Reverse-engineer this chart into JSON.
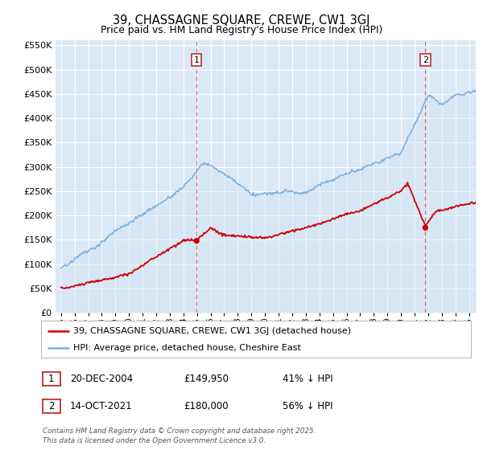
{
  "title": "39, CHASSAGNE SQUARE, CREWE, CW1 3GJ",
  "subtitle": "Price paid vs. HM Land Registry's House Price Index (HPI)",
  "legend_line1": "39, CHASSAGNE SQUARE, CREWE, CW1 3GJ (detached house)",
  "legend_line2": "HPI: Average price, detached house, Cheshire East",
  "footnote": "Contains HM Land Registry data © Crown copyright and database right 2025.\nThis data is licensed under the Open Government Licence v3.0.",
  "table_rows": [
    {
      "num": "1",
      "date": "20-DEC-2004",
      "price": "£149,950",
      "pct": "41% ↓ HPI"
    },
    {
      "num": "2",
      "date": "14-OCT-2021",
      "price": "£180,000",
      "pct": "56% ↓ HPI"
    }
  ],
  "vline1_x": 2004.97,
  "vline2_x": 2021.79,
  "red_color": "#cc0000",
  "blue_color": "#7aafe0",
  "blue_fill": "#d0e4f5",
  "vline_color": "#e06060",
  "ylim": [
    0,
    560000
  ],
  "xlim_start": 1994.6,
  "xlim_end": 2025.5,
  "background_color": "#ffffff",
  "plot_bg_color": "#dce8f5"
}
